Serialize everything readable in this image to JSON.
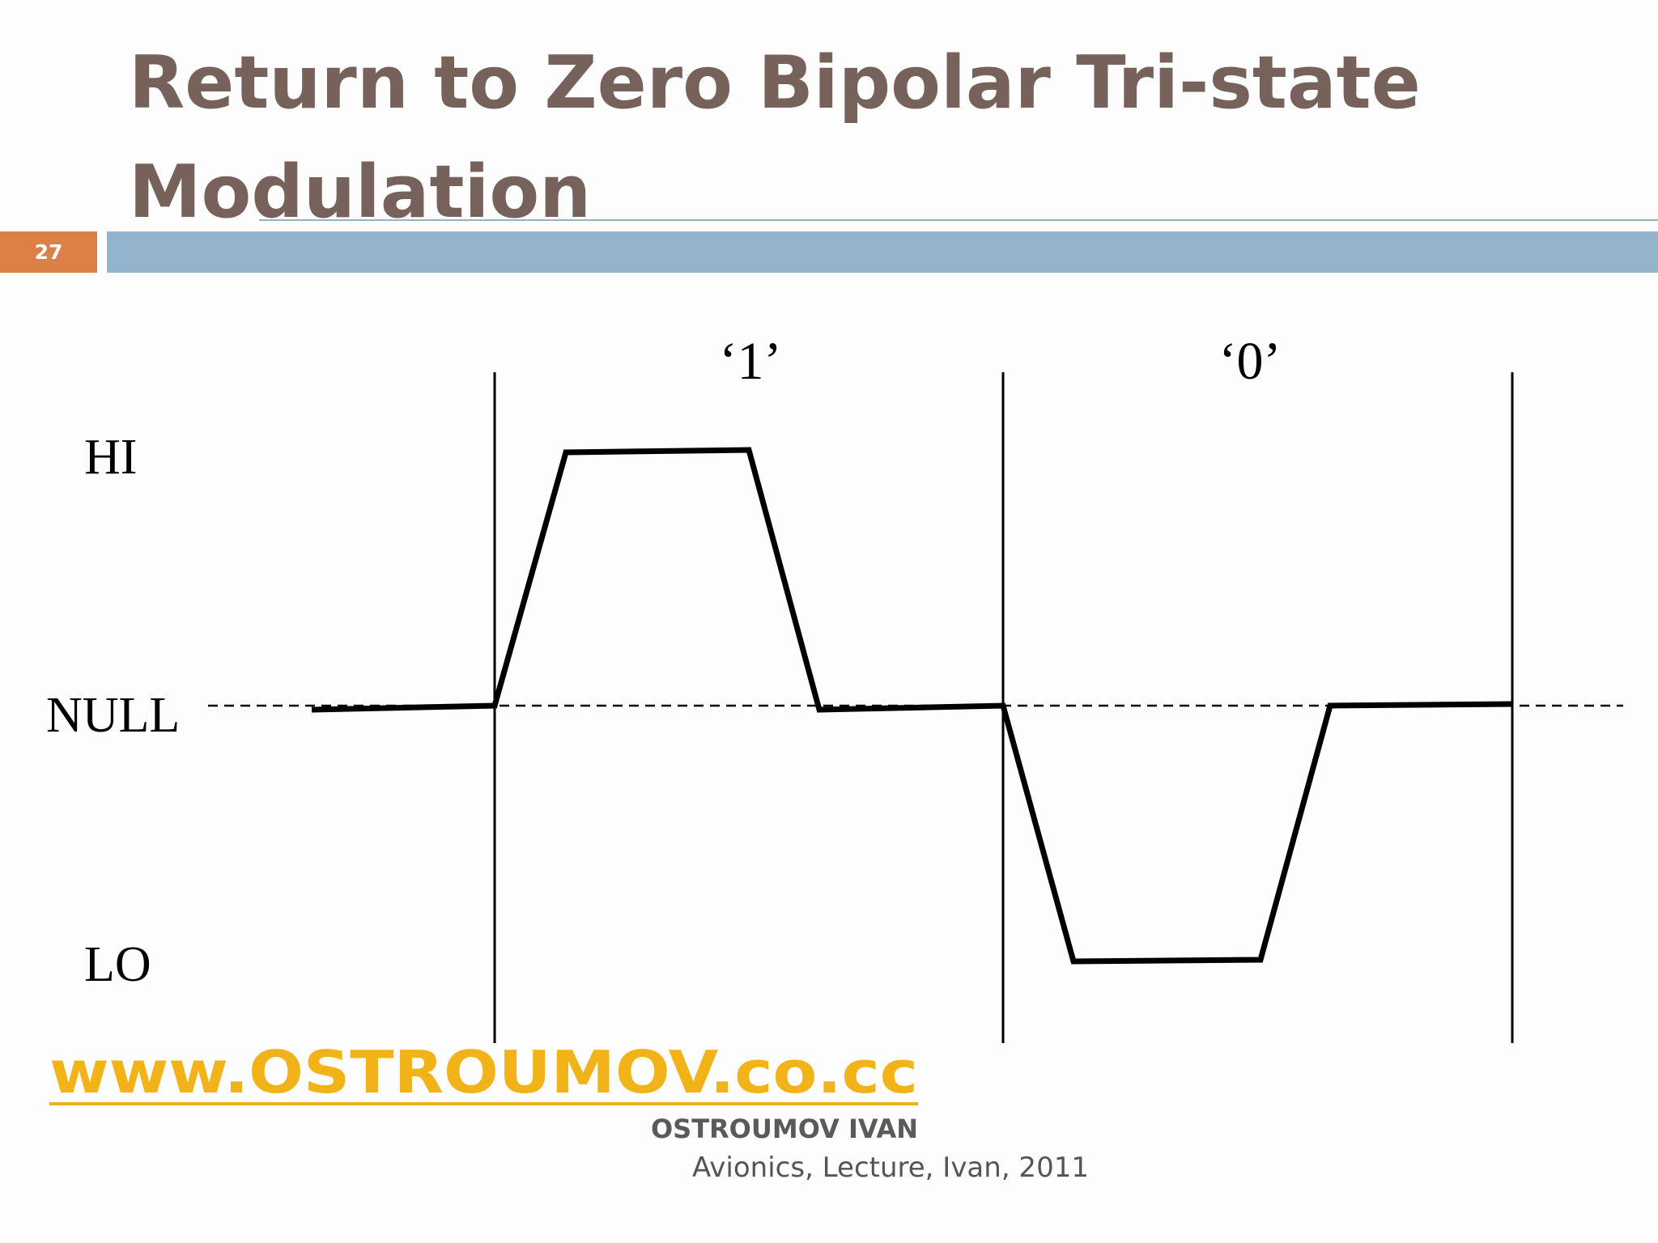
{
  "slide": {
    "title_lines": [
      "Return to Zero Bipolar Tri-state",
      "Modulation"
    ],
    "number": "27"
  },
  "diagram": {
    "bits": [
      "‘1’",
      "‘0’"
    ],
    "levels": [
      "HI",
      "NULL",
      "LO"
    ]
  },
  "footer": {
    "website": "www.OSTROUMOV.co.cc",
    "author": "OSTROUMOV IVAN",
    "caption": "Avionics, Lecture, Ivan, 2011"
  }
}
